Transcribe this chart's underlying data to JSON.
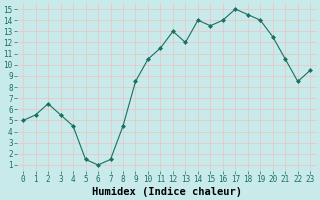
{
  "x": [
    0,
    1,
    2,
    3,
    4,
    5,
    6,
    7,
    8,
    9,
    10,
    11,
    12,
    13,
    14,
    15,
    16,
    17,
    18,
    19,
    20,
    21,
    22,
    23
  ],
  "y": [
    5.0,
    5.5,
    6.5,
    5.5,
    4.5,
    1.5,
    1.0,
    1.5,
    4.5,
    8.5,
    10.5,
    11.5,
    13.0,
    12.0,
    14.0,
    13.5,
    14.0,
    15.0,
    14.5,
    14.0,
    12.5,
    10.5,
    8.5,
    9.5
  ],
  "xlabel": "Humidex (Indice chaleur)",
  "ylim": [
    0.5,
    15.5
  ],
  "xlim": [
    -0.5,
    23.5
  ],
  "bg_color": "#c8eaea",
  "grid_color": "#e8c8c8",
  "line_color": "#1a7060",
  "marker_color": "#1a7060",
  "tick_fontsize": 5.5,
  "xlabel_fontsize": 7.5,
  "yticks": [
    1,
    2,
    3,
    4,
    5,
    6,
    7,
    8,
    9,
    10,
    11,
    12,
    13,
    14,
    15
  ],
  "xticks": [
    0,
    1,
    2,
    3,
    4,
    5,
    6,
    7,
    8,
    9,
    10,
    11,
    12,
    13,
    14,
    15,
    16,
    17,
    18,
    19,
    20,
    21,
    22,
    23
  ]
}
